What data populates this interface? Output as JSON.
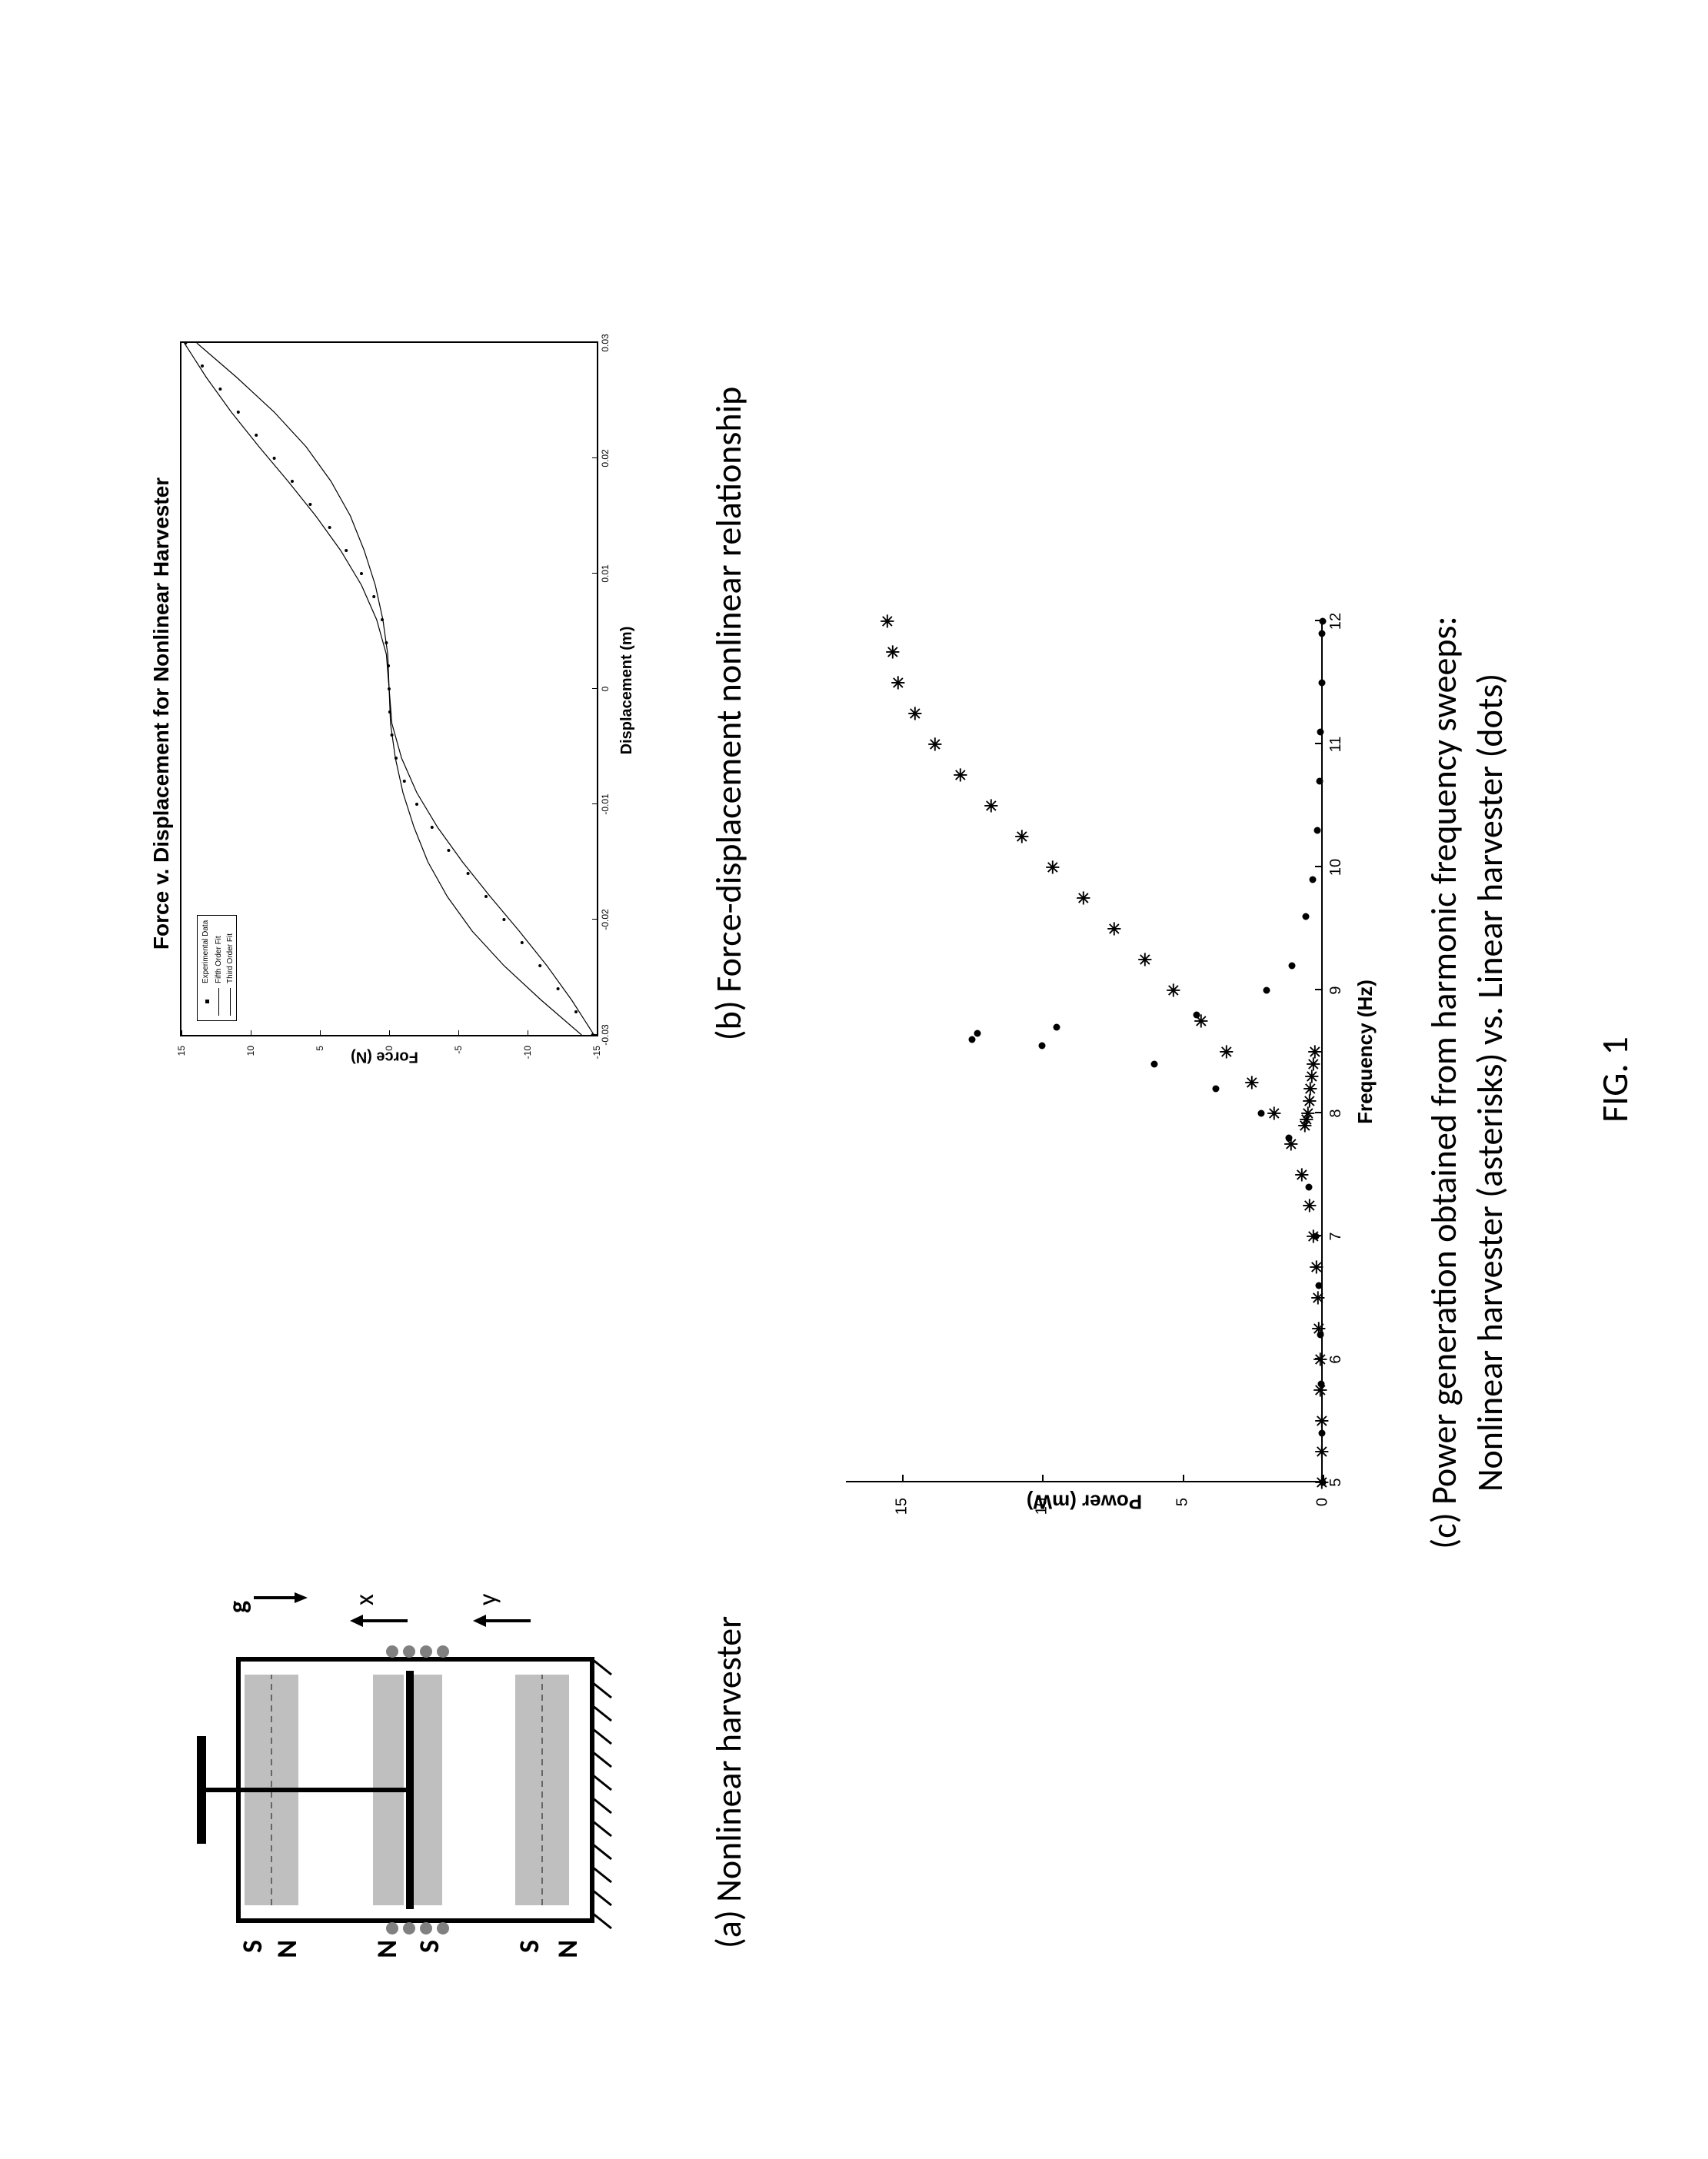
{
  "figure_label": "FIG. 1",
  "panel_a": {
    "caption": "(a) Nonlinear harvester",
    "magnet_labels": [
      "S",
      "N",
      "N",
      "S",
      "S",
      "N"
    ],
    "axis_labels": {
      "x": "x",
      "y": "y",
      "g": "g"
    }
  },
  "panel_b": {
    "caption": "(b) Force-displacement nonlinear relationship",
    "type": "line+scatter",
    "title": "Force v. Displacement for Nonlinear Harvester",
    "title_fontsize": 20,
    "xlabel": "Displacement (m)",
    "ylabel": "Force (N)",
    "label_fontsize": 14,
    "tick_fontsize": 12,
    "xlim": [
      -0.03,
      0.03
    ],
    "ylim": [
      -15,
      15
    ],
    "xticks": [
      -0.03,
      -0.02,
      -0.01,
      0,
      0.01,
      0.02,
      0.03
    ],
    "xtick_labels": [
      "-0.03",
      "-0.02",
      "-0.01",
      "0",
      "0.01",
      "0.02",
      "0.03"
    ],
    "yticks": [
      -15,
      -10,
      -5,
      0,
      5,
      10,
      15
    ],
    "ytick_labels": [
      "-15",
      "-10",
      "-5",
      "0",
      "5",
      "10",
      "15"
    ],
    "background_color": "#ffffff",
    "axis_color": "#000000",
    "grid": false,
    "legend": {
      "position": "upper-left-inside",
      "items": [
        {
          "label": "Experimental Data",
          "style": "dot"
        },
        {
          "label": "Fifth Order Fit",
          "style": "line"
        },
        {
          "label": "Third Order Fit",
          "style": "line"
        }
      ],
      "fontsize": 10
    },
    "series": [
      {
        "name": "Experimental Data",
        "marker": "dot",
        "color": "#000000",
        "marker_size": 4,
        "x": [
          -0.03,
          -0.028,
          -0.026,
          -0.024,
          -0.022,
          -0.02,
          -0.018,
          -0.016,
          -0.014,
          -0.012,
          -0.01,
          -0.008,
          -0.006,
          -0.004,
          -0.002,
          0.0,
          0.002,
          0.004,
          0.006,
          0.008,
          0.01,
          0.012,
          0.014,
          0.016,
          0.018,
          0.02,
          0.022,
          0.024,
          0.026,
          0.028,
          0.03
        ],
        "y": [
          -14.7,
          -13.5,
          -12.2,
          -10.9,
          -9.6,
          -8.3,
          -7.0,
          -5.7,
          -4.3,
          -3.1,
          -2.0,
          -1.1,
          -0.5,
          -0.2,
          -0.05,
          0.0,
          0.05,
          0.2,
          0.5,
          1.1,
          2.0,
          3.1,
          4.3,
          5.7,
          7.0,
          8.3,
          9.6,
          10.9,
          12.2,
          13.5,
          14.7
        ]
      },
      {
        "name": "Fifth Order Fit",
        "type": "line",
        "color": "#000000",
        "linewidth": 1.2,
        "x": [
          -0.03,
          -0.027,
          -0.024,
          -0.021,
          -0.018,
          -0.015,
          -0.012,
          -0.009,
          -0.006,
          -0.003,
          0.0,
          0.003,
          0.006,
          0.009,
          0.012,
          0.015,
          0.018,
          0.021,
          0.024,
          0.027,
          0.03
        ],
        "y": [
          -14.8,
          -13.2,
          -11.4,
          -9.4,
          -7.3,
          -5.3,
          -3.5,
          -2.0,
          -0.9,
          -0.2,
          0.0,
          0.2,
          0.9,
          2.0,
          3.5,
          5.3,
          7.3,
          9.4,
          11.4,
          13.2,
          14.8
        ]
      },
      {
        "name": "Third Order Fit",
        "type": "line",
        "color": "#000000",
        "linewidth": 1.2,
        "x": [
          -0.03,
          -0.027,
          -0.024,
          -0.021,
          -0.018,
          -0.015,
          -0.012,
          -0.009,
          -0.006,
          -0.003,
          0.0,
          0.003,
          0.006,
          0.009,
          0.012,
          0.015,
          0.018,
          0.021,
          0.024,
          0.027,
          0.03
        ],
        "y": [
          -13.9,
          -11.0,
          -8.3,
          -6.0,
          -4.2,
          -2.8,
          -1.8,
          -1.0,
          -0.45,
          -0.1,
          0.0,
          0.1,
          0.45,
          1.0,
          1.8,
          2.8,
          4.2,
          6.0,
          8.3,
          11.0,
          13.9
        ]
      }
    ]
  },
  "panel_c": {
    "caption_line1": "(c) Power generation obtained from harmonic frequency sweeps:",
    "caption_line2": "Nonlinear harvester (asterisks) vs. Linear harvester (dots)",
    "type": "scatter",
    "xlabel": "Frequency (Hz)",
    "ylabel": "Power (mW)",
    "label_fontsize": 22,
    "tick_fontsize": 20,
    "xlim": [
      5,
      12
    ],
    "ylim": [
      0,
      17
    ],
    "xticks": [
      5,
      6,
      7,
      8,
      9,
      10,
      11,
      12
    ],
    "xtick_labels": [
      "5",
      "6",
      "7",
      "8",
      "9",
      "10",
      "11",
      "12"
    ],
    "yticks": [
      0,
      5,
      10,
      15
    ],
    "ytick_labels": [
      "0",
      "5",
      "10",
      "15"
    ],
    "background_color": "#ffffff",
    "axis_color": "#000000",
    "grid": false,
    "series": [
      {
        "name": "Nonlinear harvester",
        "marker": "asterisk",
        "color": "#000000",
        "marker_size": 14,
        "x": [
          5.0,
          5.25,
          5.5,
          5.75,
          6.0,
          6.25,
          6.5,
          6.75,
          7.0,
          7.25,
          7.5,
          7.75,
          8.0,
          8.25,
          8.5,
          8.75,
          9.0,
          9.25,
          9.5,
          9.75,
          10.0,
          10.25,
          10.5,
          10.75,
          11.0,
          11.25,
          11.5,
          11.75,
          12.0,
          7.9,
          7.95,
          8.0,
          8.1,
          8.2,
          8.3,
          8.4,
          8.5
        ],
        "y": [
          0.0,
          0.0,
          0.0,
          0.05,
          0.05,
          0.1,
          0.15,
          0.2,
          0.3,
          0.45,
          0.7,
          1.1,
          1.7,
          2.5,
          3.4,
          4.3,
          5.3,
          6.3,
          7.4,
          8.5,
          9.6,
          10.7,
          11.8,
          12.9,
          13.8,
          14.5,
          15.1,
          15.3,
          15.5,
          0.6,
          0.55,
          0.5,
          0.45,
          0.4,
          0.35,
          0.3,
          0.25
        ]
      },
      {
        "name": "Linear harvester",
        "marker": "dot",
        "color": "#000000",
        "marker_size": 6,
        "x": [
          5.0,
          5.4,
          5.8,
          6.2,
          6.6,
          7.0,
          7.4,
          7.8,
          8.0,
          8.2,
          8.4,
          8.55,
          8.6,
          8.65,
          8.7,
          8.8,
          9.0,
          9.2,
          9.6,
          9.9,
          10.3,
          10.7,
          11.1,
          11.5,
          11.9,
          12.0
        ],
        "y": [
          0.0,
          0.02,
          0.05,
          0.08,
          0.15,
          0.25,
          0.5,
          1.2,
          2.2,
          3.8,
          6.0,
          10.0,
          12.5,
          12.3,
          9.5,
          4.5,
          2.0,
          1.1,
          0.6,
          0.35,
          0.2,
          0.12,
          0.07,
          0.04,
          0.02,
          0.0
        ]
      }
    ]
  }
}
